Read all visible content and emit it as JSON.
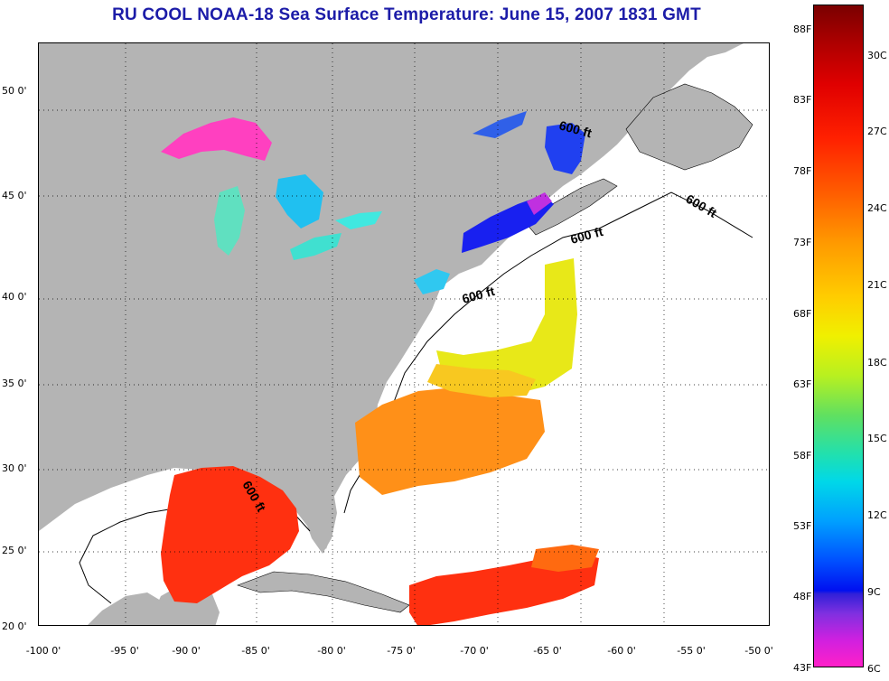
{
  "title": "RU COOL  NOAA-18  Sea Surface Temperature:  June 15, 2007 1831 GMT",
  "axes": {
    "lat_ticks": [
      "50 0'",
      "45 0'",
      "40 0'",
      "35 0'",
      "30 0'",
      "25 0'",
      "20 0'"
    ],
    "lon_ticks": [
      "-100 0'",
      "-95 0'",
      "-90 0'",
      "-85 0'",
      "-80 0'",
      "-75 0'",
      "-70 0'",
      "-65 0'",
      "-60 0'",
      "-55 0'",
      "-50 0'"
    ]
  },
  "contour_label": "600 ft",
  "colorbar": {
    "fahrenheit": [
      "88F",
      "83F",
      "78F",
      "73F",
      "68F",
      "63F",
      "58F",
      "53F",
      "48F",
      "43F"
    ],
    "celsius": [
      "30C",
      "27C",
      "24C",
      "21C",
      "18C",
      "15C",
      "12C",
      "9C",
      "6C"
    ]
  },
  "colors": {
    "land": "#b4b4b4",
    "ocean": "#ffffff",
    "title": "#1c1ca8"
  }
}
